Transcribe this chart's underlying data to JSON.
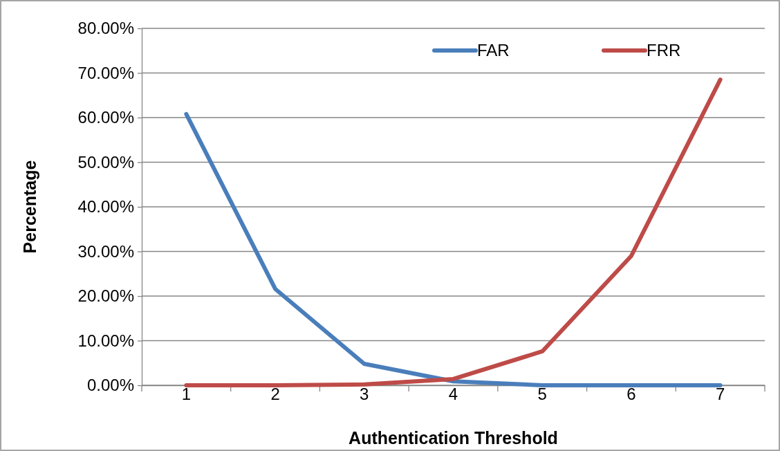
{
  "chart_data": {
    "type": "line",
    "xlabel": "Authentication Threshold",
    "ylabel": "Percentage",
    "categories": [
      "1",
      "2",
      "3",
      "4",
      "5",
      "6",
      "7"
    ],
    "series": [
      {
        "name": "FAR",
        "color": "#4a7ebb",
        "values": [
          60.8,
          21.6,
          4.8,
          0.9,
          0,
          0,
          0
        ]
      },
      {
        "name": "FRR",
        "color": "#be4b48",
        "values": [
          0,
          0,
          0.2,
          1.4,
          7.6,
          29.0,
          68.5
        ]
      }
    ],
    "ylim": [
      0,
      80
    ],
    "yticks": [
      {
        "value": 0,
        "label": "0.00%"
      },
      {
        "value": 10,
        "label": "10.00%"
      },
      {
        "value": 20,
        "label": "20.00%"
      },
      {
        "value": 30,
        "label": "30.00%"
      },
      {
        "value": 40,
        "label": "40.00%"
      },
      {
        "value": 50,
        "label": "50.00%"
      },
      {
        "value": 60,
        "label": "60.00%"
      },
      {
        "value": 70,
        "label": "70.00%"
      },
      {
        "value": 80,
        "label": "80.00%"
      }
    ],
    "grid": "y",
    "legend": "top right",
    "marker": "none",
    "line_style": "solid"
  }
}
